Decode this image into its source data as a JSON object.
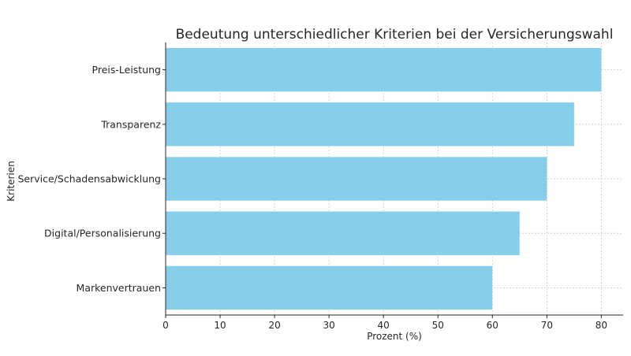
{
  "chart_data": {
    "type": "bar",
    "orientation": "horizontal",
    "title": "Bedeutung unterschiedlicher Kriterien bei der Versicherungswahl",
    "xlabel": "Prozent (%)",
    "ylabel": "Kriterien",
    "categories": [
      "Preis-Leistung",
      "Transparenz",
      "Service/Schadensabwicklung",
      "Digital/Personalisierung",
      "Markenvertrauen"
    ],
    "values": [
      80,
      75,
      70,
      65,
      60
    ],
    "xlim": [
      0,
      84
    ],
    "xticks": [
      0,
      10,
      20,
      30,
      40,
      50,
      60,
      70,
      80
    ],
    "grid": true,
    "bar_color": "#87CEEB"
  }
}
